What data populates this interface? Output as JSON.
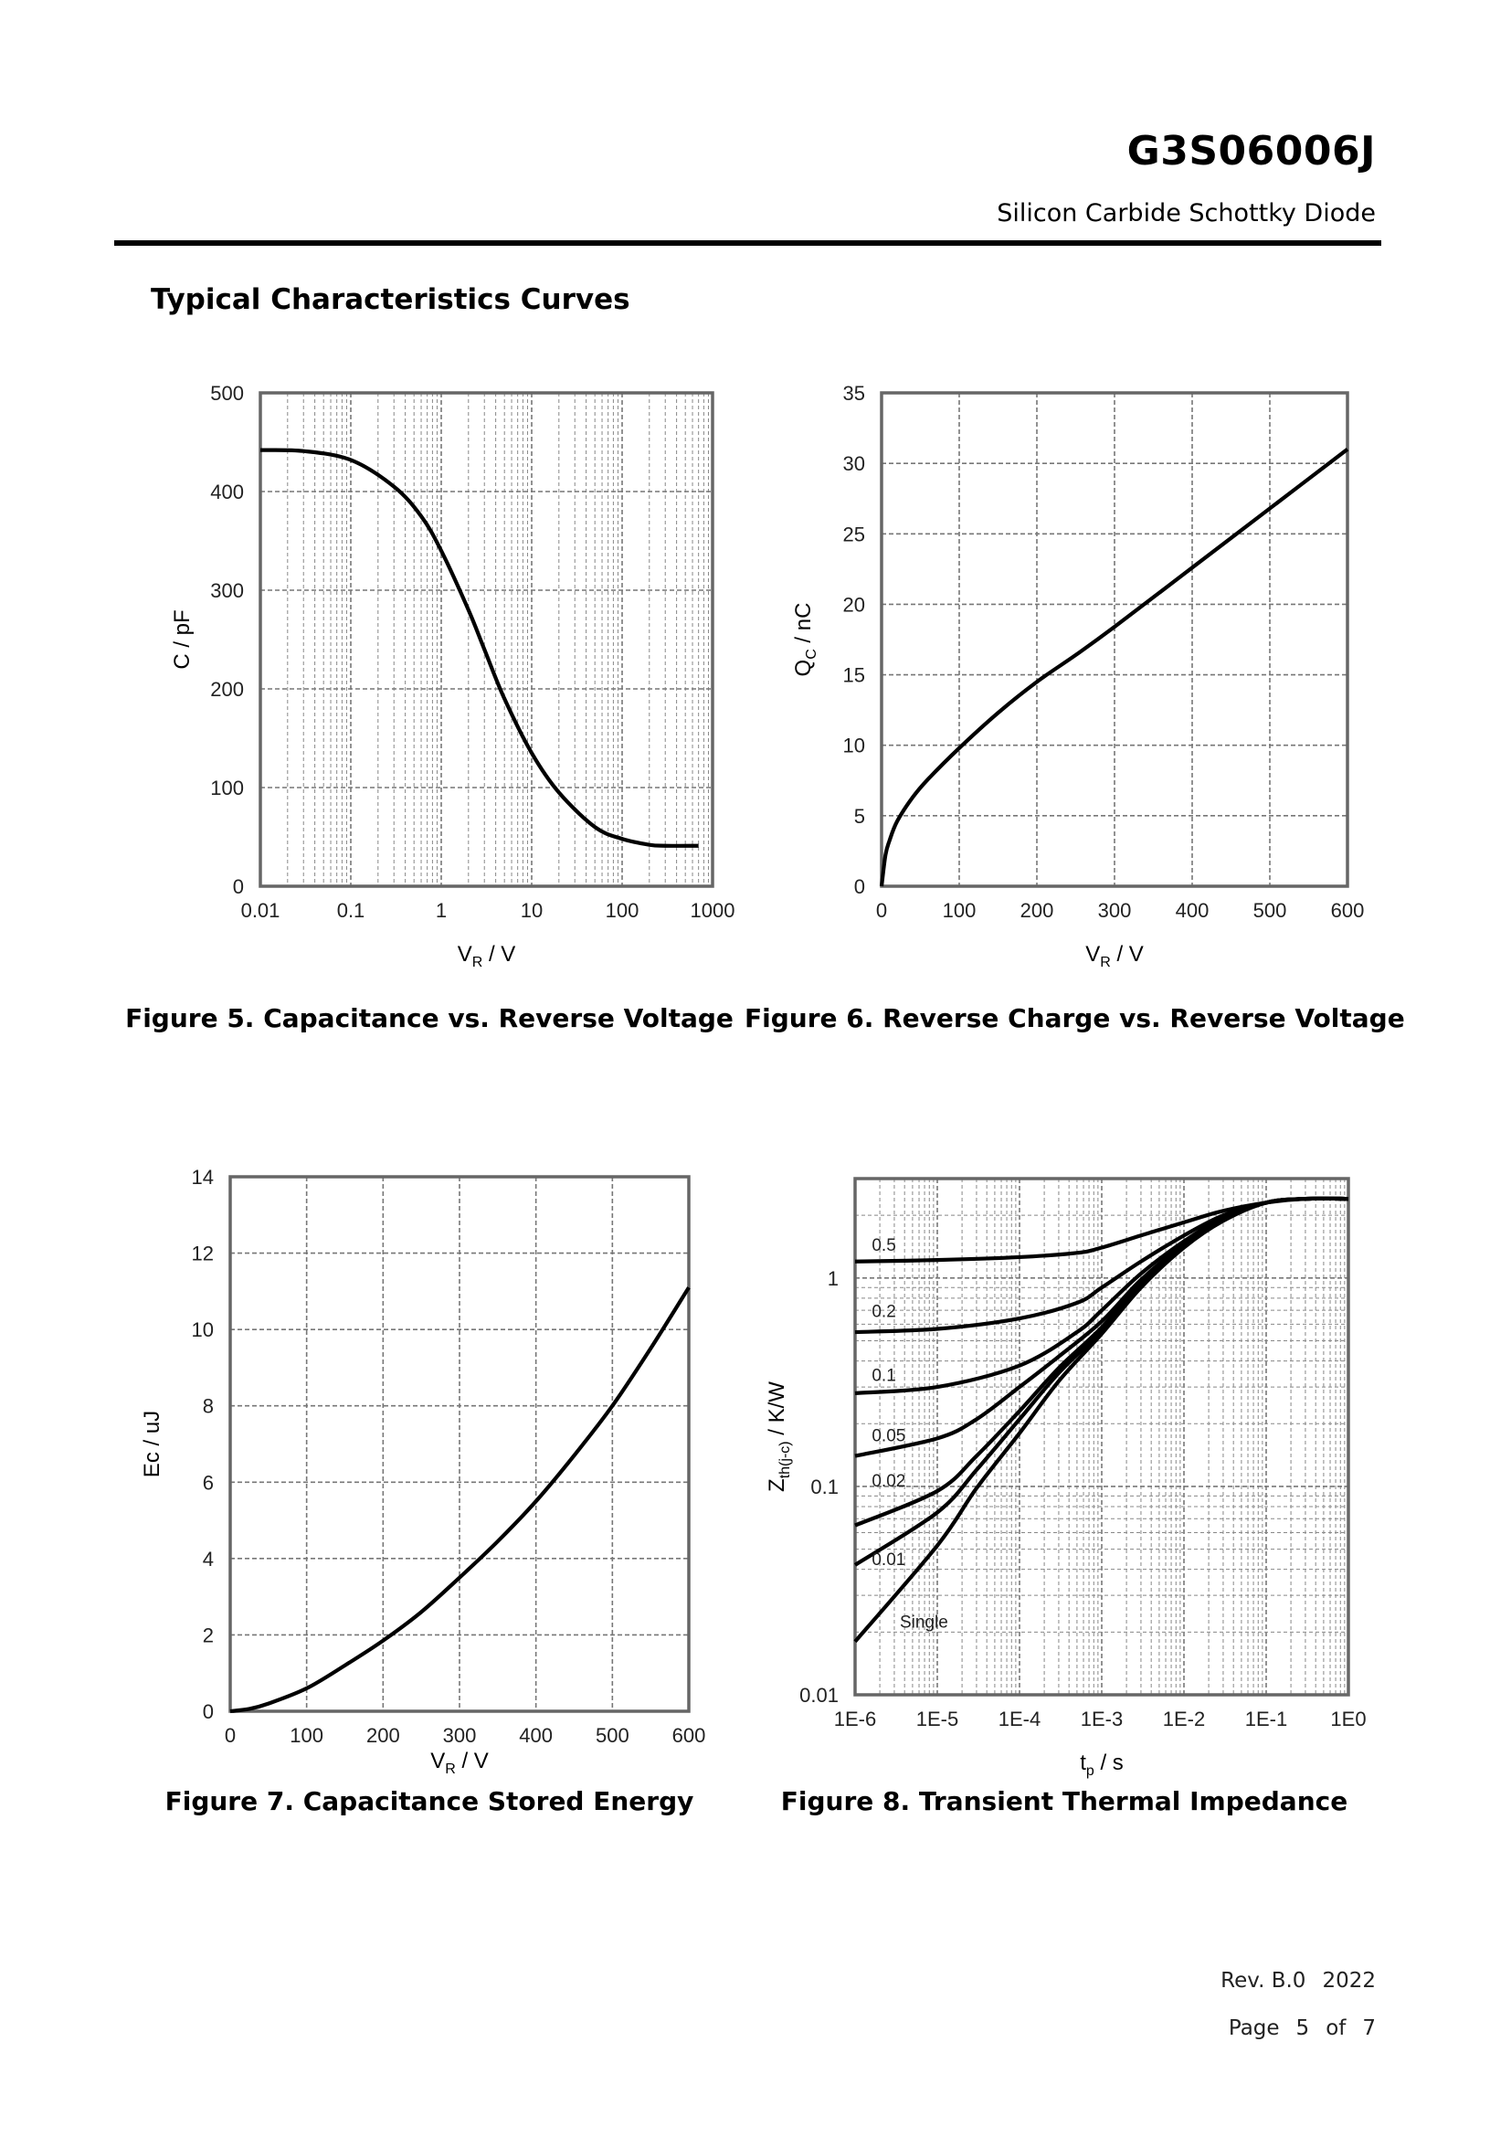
{
  "header": {
    "part_number": "G3S06006J",
    "subtitle": "Silicon Carbide Schottky Diode",
    "section_title": "Typical Characteristics Curves"
  },
  "footer": {
    "revision": "Rev. B.0",
    "year": "2022",
    "page_word": "Page",
    "page_number": "5",
    "of_word": "of",
    "page_total": "7"
  },
  "chart_data": [
    {
      "id": "fig5",
      "type": "line",
      "caption": "Figure 5. Capacitance vs. Reverse Voltage",
      "ylabel": "C / pF",
      "xlabel_main": "V",
      "xlabel_sub": "R",
      "xlabel_unit": " / V",
      "xscale": "log",
      "xlim": [
        0.01,
        1000
      ],
      "ylim": [
        0,
        500
      ],
      "xticks": [
        "0.01",
        "0.1",
        "1",
        "10",
        "100",
        "1000"
      ],
      "xtick_values": [
        0.01,
        0.1,
        1,
        10,
        100,
        1000
      ],
      "yticks": [
        "0",
        "100",
        "200",
        "300",
        "400",
        "500"
      ],
      "ytick_values": [
        0,
        100,
        200,
        300,
        400,
        500
      ],
      "series": [
        {
          "name": "C",
          "x": [
            0.01,
            0.03,
            0.1,
            0.3,
            0.6,
            1,
            2,
            3,
            5,
            10,
            20,
            50,
            100,
            200,
            300,
            700
          ],
          "y": [
            442,
            441,
            432,
            405,
            375,
            340,
            280,
            240,
            190,
            135,
            95,
            60,
            48,
            42,
            41,
            41
          ]
        }
      ]
    },
    {
      "id": "fig6",
      "type": "line",
      "caption": "Figure 6. Reverse Charge vs. Reverse Voltage",
      "ylabel_main": "Q",
      "ylabel_sub": "C",
      "ylabel_unit": " / nC",
      "xlabel_main": "V",
      "xlabel_sub": "R",
      "xlabel_unit": " / V",
      "xscale": "linear",
      "xlim": [
        0,
        600
      ],
      "ylim": [
        0,
        35
      ],
      "xticks": [
        "0",
        "100",
        "200",
        "300",
        "400",
        "500",
        "600"
      ],
      "xtick_values": [
        0,
        100,
        200,
        300,
        400,
        500,
        600
      ],
      "yticks": [
        "0",
        "5",
        "10",
        "15",
        "20",
        "25",
        "30",
        "35"
      ],
      "ytick_values": [
        0,
        5,
        10,
        15,
        20,
        25,
        30,
        35
      ],
      "series": [
        {
          "name": "Qc",
          "x": [
            0,
            5,
            10,
            20,
            40,
            60,
            100,
            150,
            200,
            250,
            300,
            400,
            500,
            600
          ],
          "y": [
            0,
            2.2,
            3.2,
            4.6,
            6.3,
            7.6,
            9.8,
            12.3,
            14.5,
            16.4,
            18.4,
            22.6,
            26.8,
            31
          ]
        }
      ]
    },
    {
      "id": "fig7",
      "type": "line",
      "caption": "Figure 7. Capacitance Stored Energy",
      "ylabel": "Ec / uJ",
      "xlabel_main": "V",
      "xlabel_sub": "R",
      "xlabel_unit": " / V",
      "xscale": "linear",
      "xlim": [
        0,
        600
      ],
      "ylim": [
        0,
        14
      ],
      "xticks": [
        "0",
        "100",
        "200",
        "300",
        "400",
        "500",
        "600"
      ],
      "xtick_values": [
        0,
        100,
        200,
        300,
        400,
        500,
        600
      ],
      "yticks": [
        "0",
        "2",
        "4",
        "6",
        "8",
        "10",
        "12",
        "14"
      ],
      "ytick_values": [
        0,
        2,
        4,
        6,
        8,
        10,
        12,
        14
      ],
      "series": [
        {
          "name": "Ec",
          "x": [
            0,
            25,
            50,
            100,
            150,
            200,
            250,
            300,
            350,
            400,
            450,
            500,
            550,
            600
          ],
          "y": [
            0,
            0.06,
            0.2,
            0.6,
            1.2,
            1.85,
            2.6,
            3.5,
            4.45,
            5.5,
            6.7,
            8.0,
            9.5,
            11.1
          ]
        }
      ]
    },
    {
      "id": "fig8",
      "type": "line",
      "caption": "Figure 8. Transient Thermal Impedance",
      "ylabel_main": "Z",
      "ylabel_sub": "th(j-c)",
      "ylabel_unit": " / K/W",
      "xlabel_main": "t",
      "xlabel_sub": "p",
      "xlabel_unit": " / s",
      "xscale": "log",
      "yscale": "log",
      "xlim": [
        1e-06,
        1
      ],
      "ylim": [
        0.01,
        3
      ],
      "xticks": [
        "1E-6",
        "1E-5",
        "1E-4",
        "1E-3",
        "1E-2",
        "1E-1",
        "1E0"
      ],
      "xtick_values": [
        1e-06,
        1e-05,
        0.0001,
        0.001,
        0.01,
        0.1,
        1
      ],
      "yticks": [
        "0.01",
        "0.1",
        "1"
      ],
      "ytick_values": [
        0.01,
        0.1,
        1
      ],
      "series": [
        {
          "name": "0.5",
          "label_x": 1.6e-06,
          "label_y": 1.35,
          "x": [
            1e-06,
            1e-05,
            0.0001,
            0.0005,
            0.001,
            0.003,
            0.01,
            0.03,
            0.1,
            0.3,
            1
          ],
          "y": [
            1.2,
            1.22,
            1.26,
            1.32,
            1.4,
            1.6,
            1.85,
            2.1,
            2.3,
            2.4,
            2.4
          ]
        },
        {
          "name": "0.2",
          "label_x": 1.6e-06,
          "label_y": 0.65,
          "x": [
            1e-06,
            1e-05,
            0.0001,
            0.0005,
            0.001,
            0.003,
            0.01,
            0.03,
            0.1,
            0.3,
            1
          ],
          "y": [
            0.55,
            0.57,
            0.64,
            0.76,
            0.9,
            1.2,
            1.6,
            2.0,
            2.3,
            2.4,
            2.4
          ]
        },
        {
          "name": "0.1",
          "label_x": 1.6e-06,
          "label_y": 0.32,
          "x": [
            1e-06,
            1e-05,
            0.0001,
            0.0005,
            0.001,
            0.003,
            0.01,
            0.03,
            0.1,
            0.3,
            1
          ],
          "y": [
            0.28,
            0.3,
            0.38,
            0.55,
            0.7,
            1.05,
            1.5,
            1.95,
            2.3,
            2.4,
            2.4
          ]
        },
        {
          "name": "0.05",
          "label_x": 1.6e-06,
          "label_y": 0.165,
          "x": [
            1e-06,
            1e-05,
            3e-05,
            0.0001,
            0.0003,
            0.001,
            0.003,
            0.01,
            0.03,
            0.1,
            0.3,
            1
          ],
          "y": [
            0.14,
            0.17,
            0.21,
            0.3,
            0.42,
            0.62,
            0.98,
            1.45,
            1.92,
            2.3,
            2.4,
            2.4
          ]
        },
        {
          "name": "0.02",
          "label_x": 1.6e-06,
          "label_y": 0.1,
          "x": [
            1e-06,
            1e-05,
            3e-05,
            0.0001,
            0.0003,
            0.001,
            0.003,
            0.01,
            0.03,
            0.1,
            0.3,
            1
          ],
          "y": [
            0.065,
            0.095,
            0.14,
            0.23,
            0.37,
            0.58,
            0.95,
            1.43,
            1.9,
            2.3,
            2.4,
            2.4
          ]
        },
        {
          "name": "0.01",
          "label_x": 1.6e-06,
          "label_y": 0.042,
          "x": [
            1e-06,
            1e-05,
            3e-05,
            0.0001,
            0.0003,
            0.001,
            0.003,
            0.01,
            0.03,
            0.1,
            0.3,
            1
          ],
          "y": [
            0.042,
            0.075,
            0.12,
            0.21,
            0.35,
            0.56,
            0.93,
            1.42,
            1.9,
            2.3,
            2.4,
            2.4
          ]
        },
        {
          "name": "Single",
          "label_x": 3.5e-06,
          "label_y": 0.021,
          "x": [
            1e-06,
            1e-05,
            3e-05,
            0.0001,
            0.0003,
            0.001,
            0.003,
            0.01,
            0.03,
            0.1,
            0.3,
            1
          ],
          "y": [
            0.018,
            0.052,
            0.098,
            0.18,
            0.32,
            0.54,
            0.9,
            1.4,
            1.88,
            2.3,
            2.4,
            2.4
          ]
        }
      ]
    }
  ]
}
